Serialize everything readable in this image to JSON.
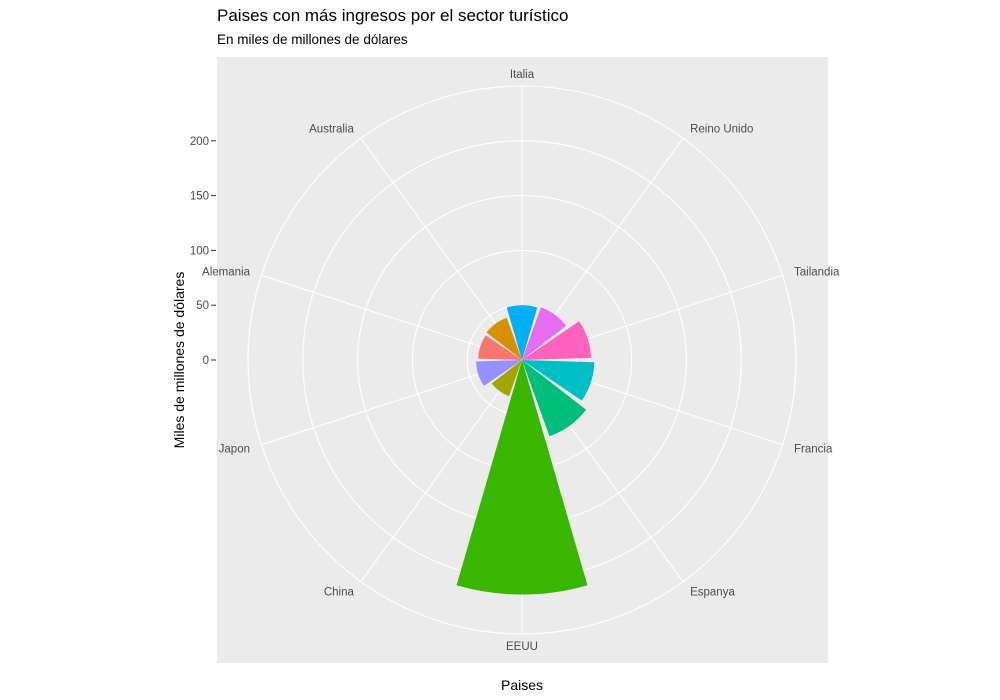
{
  "chart_data": {
    "type": "bar",
    "coord": "polar",
    "title": "Paises con más ingresos por el sector turístico",
    "subtitle": "En miles de millones de dólares",
    "xlabel": "Paises",
    "ylabel": "Miles de millones de dólares",
    "categories": [
      "Alemania",
      "Australia",
      "China",
      "EEUU",
      "Espanya",
      "Francia",
      "Italia",
      "Japon",
      "Reino Unido",
      "Tailandia"
    ],
    "angular_order": [
      "Alemania",
      "Australia",
      "Italia",
      "Reino Unido",
      "Tailandia",
      "Francia",
      "Espanya",
      "EEUU",
      "China",
      "Japon"
    ],
    "values": [
      40,
      41,
      35,
      214,
      74,
      66,
      50,
      42,
      51,
      63
    ],
    "colors": [
      "#F8766D",
      "#D89000",
      "#A3A500",
      "#39B600",
      "#00BF7D",
      "#00BFC4",
      "#00B0F6",
      "#9590FF",
      "#E76BF3",
      "#FF62BC"
    ],
    "y_ticks": [
      0,
      50,
      100,
      150,
      200
    ],
    "y_tick_labels": [
      "0",
      "50",
      "100",
      "150",
      "200"
    ],
    "ring_values": [
      50,
      100,
      150,
      200,
      250
    ],
    "ylim": [
      0,
      250
    ],
    "grid": true,
    "legend": "none"
  }
}
